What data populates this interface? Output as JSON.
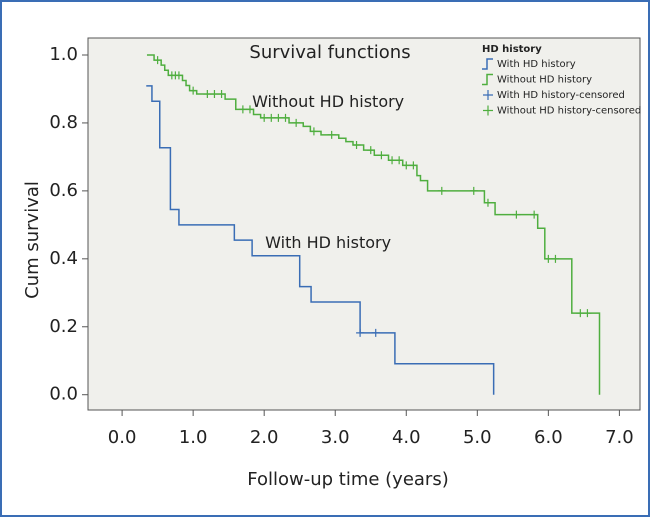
{
  "chart_data": {
    "type": "survival",
    "title": "Survival functions",
    "x_label": "Follow-up time (years)",
    "y_label": "Cum survival",
    "legend_title": "HD history",
    "annotations": [
      {
        "text": "Without HD history",
        "x": 2.9,
        "y": 0.86
      },
      {
        "text": "With HD history",
        "x": 2.9,
        "y": 0.445
      }
    ],
    "xlim": [
      -0.48,
      7.29
    ],
    "ylim": [
      -0.045,
      1.05
    ],
    "xticks": [
      {
        "value": 0,
        "label": "0.0"
      },
      {
        "value": 1,
        "label": "1.0"
      },
      {
        "value": 2,
        "label": "2.0"
      },
      {
        "value": 3,
        "label": "3.0"
      },
      {
        "value": 4,
        "label": "4.0"
      },
      {
        "value": 5,
        "label": "5.0"
      },
      {
        "value": 6,
        "label": "6.0"
      },
      {
        "value": 7,
        "label": "7.0"
      }
    ],
    "yticks": [
      {
        "value": 0,
        "label": "0.0"
      },
      {
        "value": 0.2,
        "label": "0.2"
      },
      {
        "value": 0.4,
        "label": "0.4"
      },
      {
        "value": 0.6,
        "label": "0.6"
      },
      {
        "value": 0.8,
        "label": "0.8"
      },
      {
        "value": 1,
        "label": "1.0"
      }
    ],
    "series": [
      {
        "name": "With HD history",
        "color": "#3a6db5",
        "style": "step",
        "x": [
          0.34,
          0.42,
          0.53,
          0.68,
          0.8,
          1.58,
          1.83,
          2.5,
          2.66,
          3.35,
          3.84,
          5.23
        ],
        "values": [
          0.909,
          0.864,
          0.727,
          0.545,
          0.5,
          0.455,
          0.409,
          0.318,
          0.273,
          0.182,
          0.091,
          0
        ]
      },
      {
        "name": "Without HD history",
        "color": "#4fae3f",
        "style": "step",
        "x": [
          0.35,
          0.45,
          0.55,
          0.6,
          0.65,
          0.85,
          0.9,
          0.95,
          1.05,
          1.45,
          1.6,
          1.85,
          1.95,
          2.35,
          2.55,
          2.65,
          2.8,
          3.05,
          3.15,
          3.25,
          3.4,
          3.55,
          3.75,
          3.95,
          4.15,
          4.2,
          4.3,
          5.1,
          5.25,
          5.85,
          5.95,
          6.33,
          6.72
        ],
        "values": [
          1.0,
          0.985,
          0.97,
          0.955,
          0.94,
          0.925,
          0.91,
          0.895,
          0.885,
          0.87,
          0.84,
          0.825,
          0.815,
          0.8,
          0.79,
          0.775,
          0.765,
          0.755,
          0.745,
          0.735,
          0.72,
          0.705,
          0.69,
          0.675,
          0.645,
          0.63,
          0.6,
          0.565,
          0.53,
          0.49,
          0.4,
          0.24,
          0
        ]
      },
      {
        "name": "With HD history-censored",
        "color": "#3a6db5",
        "style": "censored",
        "x": [
          3.35,
          3.57
        ],
        "values": [
          0.182,
          0.182
        ]
      },
      {
        "name": "Without HD history-censored",
        "color": "#4fae3f",
        "style": "censored",
        "x": [
          0.5,
          0.7,
          0.75,
          0.8,
          1.0,
          1.2,
          1.3,
          1.4,
          1.7,
          1.8,
          2.0,
          2.1,
          2.2,
          2.3,
          2.45,
          2.7,
          2.95,
          3.3,
          3.5,
          3.65,
          3.8,
          3.9,
          4.0,
          4.1,
          4.5,
          4.95,
          5.15,
          5.55,
          5.8,
          6.0,
          6.1,
          6.45,
          6.55
        ],
        "values": [
          0.985,
          0.94,
          0.94,
          0.94,
          0.895,
          0.885,
          0.885,
          0.885,
          0.84,
          0.84,
          0.815,
          0.815,
          0.815,
          0.815,
          0.8,
          0.775,
          0.765,
          0.735,
          0.72,
          0.705,
          0.69,
          0.69,
          0.675,
          0.675,
          0.6,
          0.6,
          0.565,
          0.53,
          0.53,
          0.4,
          0.4,
          0.24,
          0.24
        ]
      }
    ]
  }
}
